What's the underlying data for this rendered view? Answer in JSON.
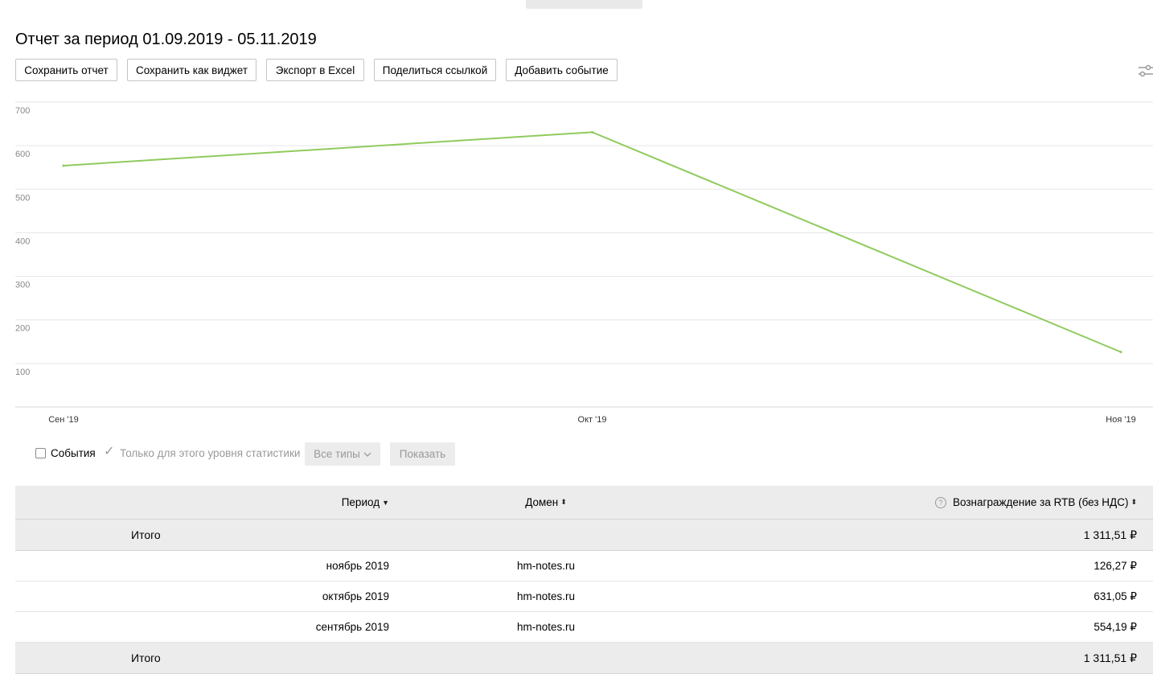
{
  "report": {
    "title": "Отчет за период 01.09.2019 - 05.11.2019"
  },
  "toolbar": {
    "buttons": [
      "Сохранить отчет",
      "Сохранить как виджет",
      "Экспорт в Excel",
      "Поделиться ссылкой",
      "Добавить событие"
    ],
    "settings_icon": "sliders-icon"
  },
  "chart_data": {
    "type": "line",
    "categories": [
      "Сен '19",
      "Окт '19",
      "Ноя '19"
    ],
    "series": [
      {
        "color": "#8fcb5c",
        "values": [
          554.19,
          631.05,
          126.27
        ]
      }
    ],
    "ylim": [
      0,
      700
    ],
    "yticks": [
      100,
      200,
      300,
      400,
      500,
      600,
      700
    ],
    "grid": true
  },
  "events": {
    "events_label": "События",
    "only_level_label": "Только для этого уровня статистики",
    "types_label": "Все типы",
    "show_label": "Показать"
  },
  "table": {
    "headers": {
      "period": "Период",
      "domain": "Домен",
      "reward": "Вознаграждение за RTB (без НДС)"
    },
    "total_label": "Итого",
    "total_value": "1 311,51 ₽",
    "rows": [
      {
        "period": "ноябрь 2019",
        "domain": "hm-notes.ru",
        "reward": "126,27 ₽"
      },
      {
        "period": "октябрь 2019",
        "domain": "hm-notes.ru",
        "reward": "631,05 ₽"
      },
      {
        "period": "сентябрь 2019",
        "domain": "hm-notes.ru",
        "reward": "554,19 ₽"
      }
    ]
  }
}
